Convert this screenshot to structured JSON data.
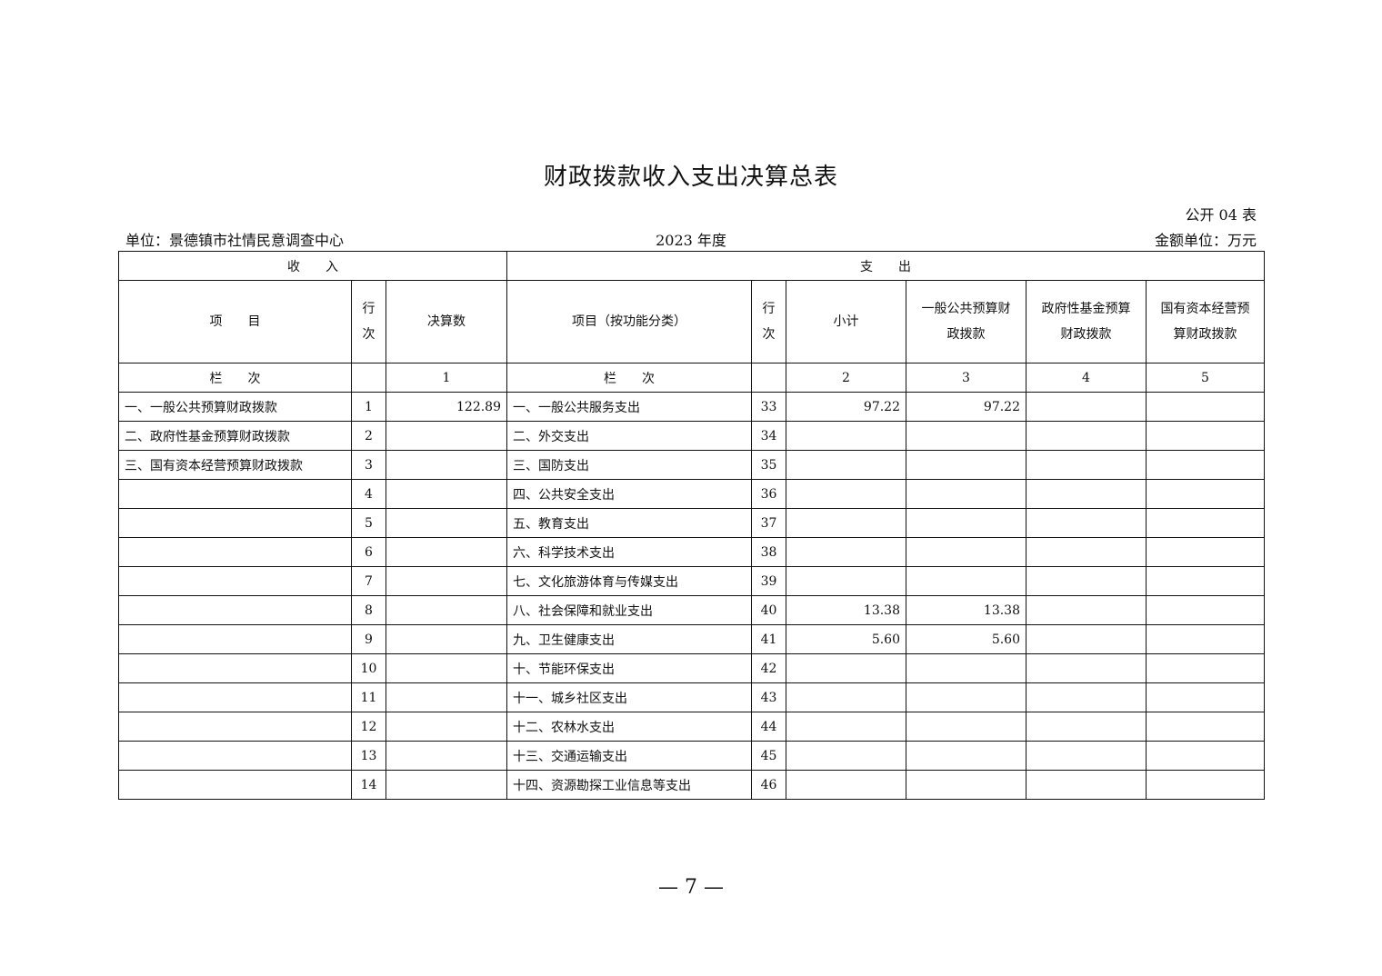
{
  "title": "财政拨款收入支出决算总表",
  "form_no": "公开 04 表",
  "unit": "单位：景德镇市社情民意调查中心",
  "year": "2023 年度",
  "currency_unit": "金额单位：万元",
  "headers": {
    "income": "收　　入",
    "expense": "支　　出",
    "item": "项　　目",
    "row_no": "行次",
    "final_amount": "决算数",
    "func_item": "项目（按功能分类）",
    "subtotal": "小计",
    "general_budget": "一般公共预算财政拨款",
    "gov_fund": "政府性基金预算财政拨款",
    "state_capital": "国有资本经营预算财政拨款",
    "lanci": "栏　　次",
    "col1": "1",
    "col2": "2",
    "col3": "3",
    "col4": "4",
    "col5": "5"
  },
  "rows": [
    {
      "in_item": "一、一般公共预算财政拨款",
      "in_no": "1",
      "in_amt": "122.89",
      "out_item": "一、一般公共服务支出",
      "out_no": "33",
      "sub": "97.22",
      "gen": "97.22",
      "fund": "",
      "cap": ""
    },
    {
      "in_item": "二、政府性基金预算财政拨款",
      "in_no": "2",
      "in_amt": "",
      "out_item": "二、外交支出",
      "out_no": "34",
      "sub": "",
      "gen": "",
      "fund": "",
      "cap": ""
    },
    {
      "in_item": "三、国有资本经营预算财政拨款",
      "in_no": "3",
      "in_amt": "",
      "out_item": "三、国防支出",
      "out_no": "35",
      "sub": "",
      "gen": "",
      "fund": "",
      "cap": ""
    },
    {
      "in_item": "",
      "in_no": "4",
      "in_amt": "",
      "out_item": "四、公共安全支出",
      "out_no": "36",
      "sub": "",
      "gen": "",
      "fund": "",
      "cap": ""
    },
    {
      "in_item": "",
      "in_no": "5",
      "in_amt": "",
      "out_item": "五、教育支出",
      "out_no": "37",
      "sub": "",
      "gen": "",
      "fund": "",
      "cap": ""
    },
    {
      "in_item": "",
      "in_no": "6",
      "in_amt": "",
      "out_item": "六、科学技术支出",
      "out_no": "38",
      "sub": "",
      "gen": "",
      "fund": "",
      "cap": ""
    },
    {
      "in_item": "",
      "in_no": "7",
      "in_amt": "",
      "out_item": "七、文化旅游体育与传媒支出",
      "out_no": "39",
      "sub": "",
      "gen": "",
      "fund": "",
      "cap": ""
    },
    {
      "in_item": "",
      "in_no": "8",
      "in_amt": "",
      "out_item": "八、社会保障和就业支出",
      "out_no": "40",
      "sub": "13.38",
      "gen": "13.38",
      "fund": "",
      "cap": ""
    },
    {
      "in_item": "",
      "in_no": "9",
      "in_amt": "",
      "out_item": "九、卫生健康支出",
      "out_no": "41",
      "sub": "5.60",
      "gen": "5.60",
      "fund": "",
      "cap": ""
    },
    {
      "in_item": "",
      "in_no": "10",
      "in_amt": "",
      "out_item": "十、节能环保支出",
      "out_no": "42",
      "sub": "",
      "gen": "",
      "fund": "",
      "cap": ""
    },
    {
      "in_item": "",
      "in_no": "11",
      "in_amt": "",
      "out_item": "十一、城乡社区支出",
      "out_no": "43",
      "sub": "",
      "gen": "",
      "fund": "",
      "cap": ""
    },
    {
      "in_item": "",
      "in_no": "12",
      "in_amt": "",
      "out_item": "十二、农林水支出",
      "out_no": "44",
      "sub": "",
      "gen": "",
      "fund": "",
      "cap": ""
    },
    {
      "in_item": "",
      "in_no": "13",
      "in_amt": "",
      "out_item": "十三、交通运输支出",
      "out_no": "45",
      "sub": "",
      "gen": "",
      "fund": "",
      "cap": ""
    },
    {
      "in_item": "",
      "in_no": "14",
      "in_amt": "",
      "out_item": "十四、资源勘探工业信息等支出",
      "out_no": "46",
      "sub": "",
      "gen": "",
      "fund": "",
      "cap": ""
    }
  ],
  "page_number": "— 7 —"
}
